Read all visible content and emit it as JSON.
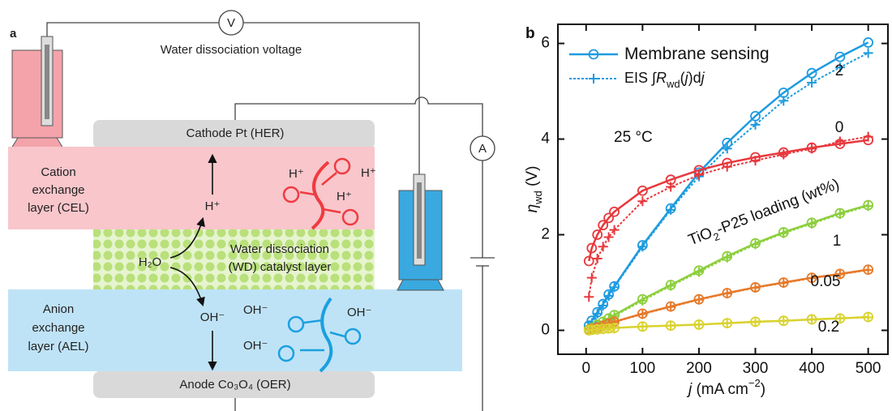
{
  "diagram": {
    "panel_label": "a",
    "voltage_label": "Water dissociation voltage",
    "voltmeter": "V",
    "ammeter": "A",
    "cathode": "Cathode Pt (HER)",
    "cel_label": [
      "Cation",
      "exchange",
      "layer (CEL)"
    ],
    "cel_ion": "H⁺",
    "cel_group_ions": [
      "H⁺",
      "H⁺",
      "H⁺"
    ],
    "wd_label": [
      "Water dissociation",
      "(WD) catalyst layer"
    ],
    "water": "H₂O",
    "ael_label": [
      "Anion",
      "exchange",
      "layer (AEL)"
    ],
    "ael_ion": "OH⁻",
    "ael_group_ions": [
      "OH⁻",
      "OH⁻",
      "OH⁻"
    ],
    "anode": "Anode Co₃O₄ (OER)"
  },
  "chart_data": {
    "type": "line",
    "panel_label": "b",
    "xlabel_parts": [
      "j",
      " (mA cm",
      "−2",
      ")"
    ],
    "ylabel_parts": [
      "η",
      "wd",
      " (V)"
    ],
    "legend": [
      {
        "parts": [
          "Membrane sensing"
        ]
      },
      {
        "parts": [
          "EIS ∫",
          "R",
          "wd",
          "(",
          "j",
          ")d",
          "j"
        ]
      }
    ],
    "annotations": [
      "25 °C"
    ],
    "series_title_parts": [
      "TiO",
      "2",
      "-P25 loading (wt%)"
    ],
    "x": [
      5,
      10,
      20,
      30,
      40,
      50,
      100,
      150,
      200,
      250,
      300,
      350,
      400,
      450,
      500
    ],
    "series": [
      {
        "name": "2",
        "color": "#1e9be0",
        "values": [
          0.1,
          0.2,
          0.38,
          0.55,
          0.75,
          0.92,
          1.78,
          2.55,
          3.3,
          3.92,
          4.48,
          4.97,
          5.38,
          5.72,
          6.02
        ],
        "eis_values": [
          0.08,
          0.15,
          0.35,
          0.52,
          0.72,
          0.9,
          1.75,
          2.52,
          3.22,
          3.8,
          4.3,
          4.8,
          5.18,
          5.5,
          5.8
        ]
      },
      {
        "name": "0",
        "color": "#e8383d",
        "values": [
          1.45,
          1.72,
          2.0,
          2.2,
          2.35,
          2.48,
          2.92,
          3.15,
          3.35,
          3.5,
          3.62,
          3.72,
          3.82,
          3.9,
          3.98
        ],
        "eis_values": [
          0.7,
          1.1,
          1.5,
          1.75,
          1.95,
          2.1,
          2.7,
          3.0,
          3.25,
          3.42,
          3.55,
          3.68,
          3.8,
          3.95,
          4.05
        ]
      },
      {
        "name": "1",
        "color": "#8ccf3c",
        "values": [
          0.02,
          0.05,
          0.12,
          0.18,
          0.25,
          0.32,
          0.65,
          0.95,
          1.25,
          1.55,
          1.82,
          2.05,
          2.25,
          2.45,
          2.62
        ],
        "eis_values": [
          0.02,
          0.05,
          0.11,
          0.17,
          0.24,
          0.3,
          0.62,
          0.93,
          1.22,
          1.52,
          1.8,
          2.03,
          2.23,
          2.43,
          2.6
        ]
      },
      {
        "name": "0.05",
        "color": "#e67a2a",
        "values": [
          0.01,
          0.03,
          0.06,
          0.1,
          0.14,
          0.18,
          0.35,
          0.5,
          0.65,
          0.78,
          0.9,
          1.0,
          1.1,
          1.18,
          1.27
        ],
        "eis_values": [
          0.01,
          0.03,
          0.06,
          0.09,
          0.13,
          0.17,
          0.34,
          0.49,
          0.64,
          0.77,
          0.89,
          0.99,
          1.09,
          1.17,
          1.26
        ]
      },
      {
        "name": "0.2",
        "color": "#d9d22e",
        "values": [
          0.0,
          0.01,
          0.02,
          0.03,
          0.04,
          0.05,
          0.08,
          0.1,
          0.12,
          0.15,
          0.18,
          0.2,
          0.23,
          0.25,
          0.28
        ],
        "eis_values": [
          0.0,
          0.01,
          0.02,
          0.03,
          0.04,
          0.05,
          0.08,
          0.1,
          0.12,
          0.15,
          0.17,
          0.2,
          0.22,
          0.25,
          0.27
        ]
      }
    ],
    "xlim": [
      -50,
      535
    ],
    "ylim": [
      -0.5,
      6.4
    ],
    "xticks": [
      0,
      100,
      200,
      300,
      400,
      500
    ],
    "yticks": [
      0,
      2,
      4,
      6
    ]
  }
}
